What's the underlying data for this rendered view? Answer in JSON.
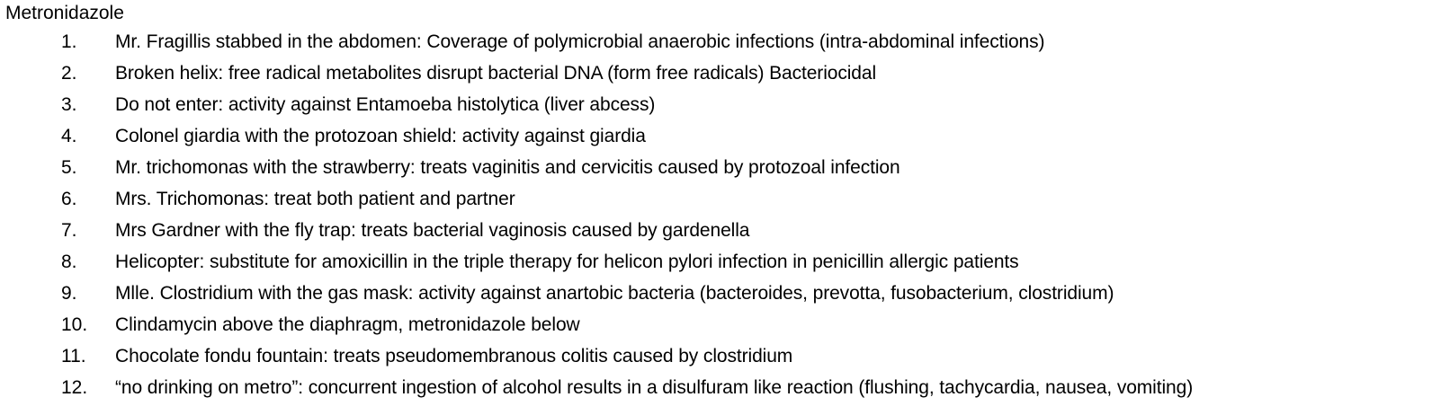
{
  "document": {
    "title": "Metronidazole",
    "items": [
      {
        "number": "1.",
        "text": "Mr. Fragillis stabbed in the abdomen: Coverage of polymicrobial anaerobic infections (intra-abdominal infections)"
      },
      {
        "number": "2.",
        "text": "Broken helix: free radical metabolites disrupt bacterial DNA (form free radicals) Bacteriocidal"
      },
      {
        "number": "3.",
        "text": "Do not enter: activity against Entamoeba histolytica (liver abcess)"
      },
      {
        "number": "4.",
        "text": "Colonel giardia with the protozoan shield: activity against giardia"
      },
      {
        "number": "5.",
        "text": "Mr. trichomonas with the strawberry: treats vaginitis and cervicitis caused by protozoal infection"
      },
      {
        "number": "6.",
        "text": "Mrs. Trichomonas: treat both patient and partner"
      },
      {
        "number": "7.",
        "text": "Mrs Gardner with the fly trap: treats bacterial vaginosis caused by gardenella"
      },
      {
        "number": "8.",
        "text": "Helicopter: substitute for amoxicillin in the triple therapy for helicon pylori infection in penicillin allergic patients"
      },
      {
        "number": "9.",
        "text": "Mlle. Clostridium with the gas mask: activity against anartobic bacteria (bacteroides, prevotta, fusobacterium, clostridium)"
      },
      {
        "number": "10.",
        "text": "Clindamycin above the diaphragm, metronidazole below"
      },
      {
        "number": "11.",
        "text": "Chocolate fondu fountain: treats pseudomembranous colitis caused by clostridium"
      },
      {
        "number": "12.",
        "text": "“no drinking on metro”: concurrent ingestion of alcohol results in a disulfuram like reaction (flushing, tachycardia, nausea, vomiting)"
      }
    ]
  }
}
